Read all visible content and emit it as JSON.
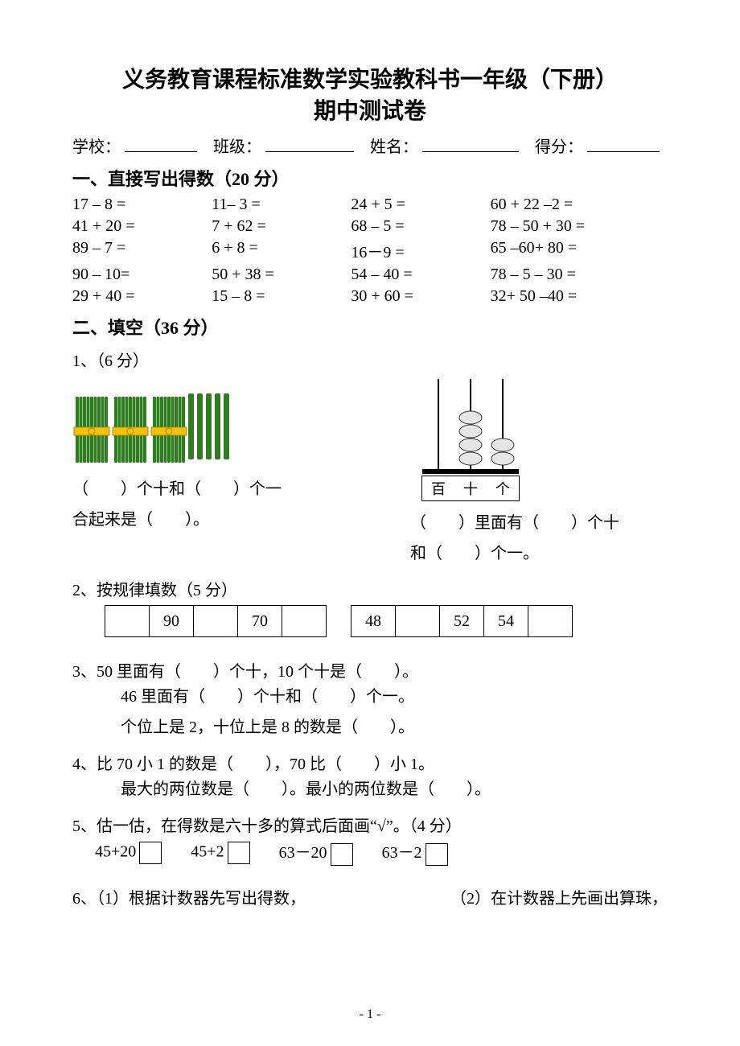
{
  "title_line1": "义务教育课程标准数学实验教科书一年级（下册）",
  "title_line2": "期中测试卷",
  "info": {
    "school": "学校：",
    "class": "班级：",
    "name": "姓名：",
    "score": "得分："
  },
  "section1": {
    "heading": "一、直接写出得数（20 分）",
    "rows": [
      [
        "17 – 8 =",
        "11– 3 =",
        "24 + 5 =",
        "60 + 22 –2 ="
      ],
      [
        "41 + 20 =",
        "7 + 62 =",
        "68 – 5 =",
        "78 – 50 + 30 ="
      ],
      [
        "89 – 7 =",
        "6 + 8 =",
        "16－9 =",
        "65 –60+ 80 ="
      ],
      [
        "90 – 10=",
        "50 + 38 =",
        "54 – 40 =",
        "78 – 5 – 30 ="
      ],
      [
        "29 + 40 =",
        "15 – 8 =",
        "30 + 60 =",
        "32+ 50 –40 ="
      ]
    ]
  },
  "section2": {
    "heading": "二、填空（36 分）",
    "q1": {
      "label": "1、（6 分）",
      "left_line1": "（　　）个十和（　　）个一",
      "left_line2": "合起来是（　　）。",
      "right_line1": "（　　）里面有（　　）个十",
      "right_line2": "和（　　）个一。",
      "abacus_labels": [
        "百",
        "十",
        "个"
      ]
    },
    "q2": {
      "label": "2、按规律填数（5 分）",
      "seq_a": [
        "",
        "90",
        "",
        "70",
        ""
      ],
      "seq_b": [
        "48",
        "",
        "52",
        "54",
        ""
      ]
    },
    "q3": {
      "label": "3、",
      "line1": "50 里面有（　　）个十，10 个十是（　　）。",
      "line2": "46 里面有（　　）个十和（　　）个一。",
      "line3": "个位上是 2，十位上是 8 的数是（　　）。"
    },
    "q4": {
      "label": "4、",
      "line1": "比 70 小 1 的数是（　　），70 比（　　）小 1。",
      "line2": "最大的两位数是（　　）。最小的两位数是（　　）。"
    },
    "q5": {
      "label": "5、估一估，在得数是六十多的算式后面画“√”。（4 分）",
      "items": [
        "45+20",
        "45+2",
        "63－20",
        "63－2"
      ]
    },
    "q6": {
      "left": "6、（1）根据计数器先写出得数，",
      "right": "（2）在计数器上先画出算珠，"
    }
  },
  "page_number": "- 1 -",
  "colors": {
    "stick_green": "#2e7d1e",
    "band_yellow": "#f4c20d",
    "bead_fill": "#e6e6e6",
    "bead_stroke": "#333333"
  },
  "sticks_figure": {
    "bundles": 3,
    "singles": 5
  },
  "abacus": {
    "beads": {
      "hundreds": 0,
      "tens": 4,
      "ones": 2
    }
  }
}
